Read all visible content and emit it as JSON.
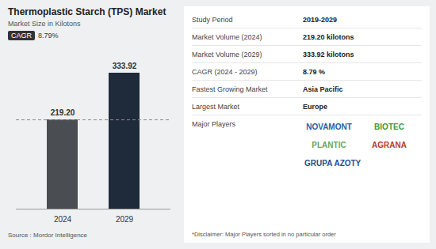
{
  "chart_data": {
    "type": "bar",
    "title": "Thermoplastic Starch (TPS) Market",
    "subtitle": "Market Size in Kilotons",
    "annotations": [
      "CAGR",
      "8.79%"
    ],
    "categories": [
      "2024",
      "2029"
    ],
    "values": [
      219.2,
      333.92
    ],
    "value_labels": [
      "219.20",
      "333.92"
    ],
    "colors": [
      "#4a4d52",
      "#1f2b3a"
    ],
    "reference_value": 219.2,
    "ylim": [
      0,
      333.92
    ],
    "grid": false,
    "data_labels": true,
    "tick_labels": "x",
    "source": "Source : Mordor Intelligence"
  },
  "info_panel": {
    "rows": [
      [
        "Study Period",
        "2019-2029"
      ],
      [
        "Market Volume (2024)",
        "219.20 kilotons"
      ],
      [
        "Market Volume (2029)",
        "333.92 kilotons"
      ],
      [
        "CAGR (2024 - 2029)",
        "8.79 %"
      ],
      [
        "Fastest Growing Market",
        "Asia Pacific"
      ],
      [
        "Largest Market",
        "Europe"
      ]
    ],
    "major_players_label": "Major Players",
    "major_players": [
      "NOVAMONT",
      "BIOTEC",
      "PLANTIC",
      "AGRANA",
      "GRUPA AZOTY"
    ],
    "disclaimer": "*Disclaimer: Major Players sorted in no particular order"
  }
}
